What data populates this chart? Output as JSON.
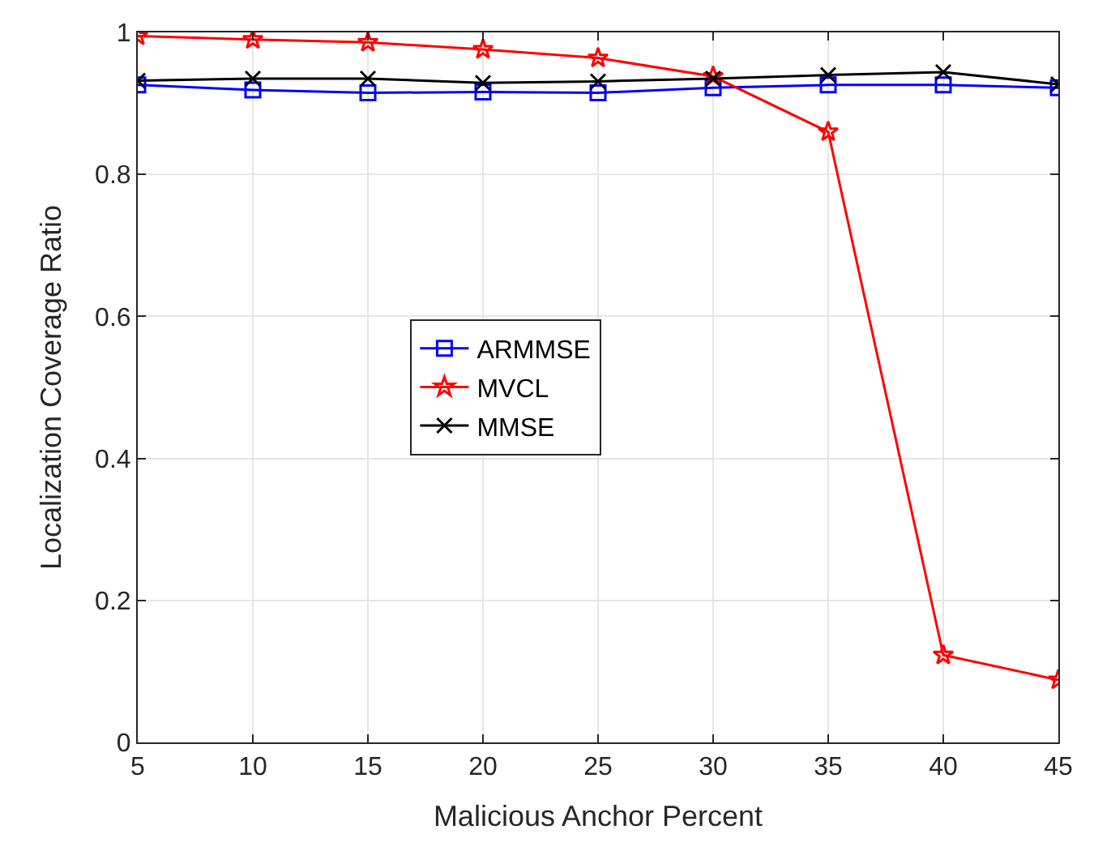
{
  "chart_data": {
    "type": "line",
    "xlabel": "Malicious Anchor Percent",
    "ylabel": "Localization Coverage Ratio",
    "x": [
      5,
      10,
      15,
      20,
      25,
      30,
      35,
      40,
      45
    ],
    "series": [
      {
        "name": "ARMMSE",
        "color": "#0000ff",
        "marker": "square",
        "values": [
          0.926,
          0.919,
          0.915,
          0.916,
          0.915,
          0.922,
          0.926,
          0.926,
          0.922
        ]
      },
      {
        "name": "MVCL",
        "color": "#ff0000",
        "marker": "star",
        "values": [
          0.995,
          0.99,
          0.986,
          0.976,
          0.964,
          0.938,
          0.86,
          0.123,
          0.088
        ]
      },
      {
        "name": "MMSE",
        "color": "#000000",
        "marker": "cross",
        "values": [
          0.932,
          0.935,
          0.935,
          0.929,
          0.931,
          0.935,
          0.94,
          0.944,
          0.927
        ]
      }
    ],
    "xlim": [
      5,
      45
    ],
    "xticks": [
      5,
      10,
      15,
      20,
      25,
      30,
      35,
      40,
      45
    ],
    "ylim": [
      0,
      1
    ],
    "yticks": [
      0,
      0.2,
      0.4,
      0.6,
      0.8,
      1
    ],
    "grid": true,
    "legend": "center",
    "line_style": "solid"
  }
}
